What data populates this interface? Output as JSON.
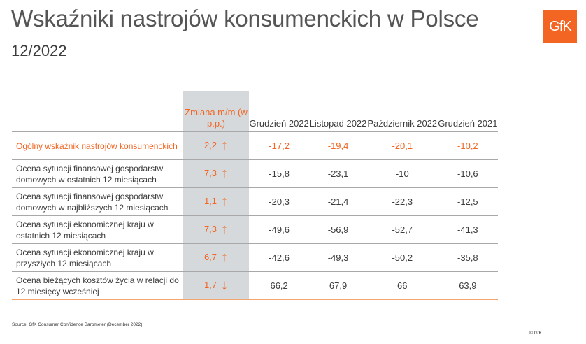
{
  "header": {
    "title": "Wskaźniki nastrojów konsumenckich w Polsce",
    "subtitle": "12/2022",
    "logo": "GfK"
  },
  "table": {
    "columns": [
      "Zmiana m/m (w p.p.)",
      "Grudzień 2022",
      "Listopad 2022",
      "Październik 2022",
      "Grudzień 2021"
    ],
    "rows": [
      {
        "label": "Ogólny wskaźnik nastrojów konsumenckich",
        "change": "2,2",
        "dir": "↑",
        "values": [
          "-17,2",
          "-19,4",
          "-20,1",
          "-10,2"
        ]
      },
      {
        "label": "Ocena sytuacji finansowej gospodarstw domowych w ostatnich 12 miesiącach",
        "change": "7,3",
        "dir": "↑",
        "values": [
          "-15,8",
          "-23,1",
          "-10",
          "-10,6"
        ]
      },
      {
        "label": "Ocena sytuacji finansowej gospodarstw domowych w najbliższych 12 miesiącach",
        "change": "1,1",
        "dir": "↑",
        "values": [
          "-20,3",
          "-21,4",
          "-22,3",
          "-12,5"
        ]
      },
      {
        "label": "Ocena sytuacji ekonomicznej kraju w ostatnich 12 miesiącach",
        "change": "7,3",
        "dir": "↑",
        "values": [
          "-49,6",
          "-56,9",
          "-52,7",
          "-41,3"
        ]
      },
      {
        "label": "Ocena sytuacji ekonomicznej kraju w przyszłych 12 miesiącach",
        "change": "6,7",
        "dir": "↑",
        "values": [
          "-42,6",
          "-49,3",
          "-50,2",
          "-35,8"
        ]
      },
      {
        "label": "Ocena bieżących kosztów życia w relacji do 12 miesięcy wcześniej",
        "change": "1,7",
        "dir": "↓",
        "values": [
          "66,2",
          "67,9",
          "66",
          "63,9"
        ]
      }
    ]
  },
  "footer": {
    "source": "Source: GfK Consumer Confidence Barometer (December 2022)",
    "copyright": "© GfK"
  },
  "colors": {
    "accent": "#f26522",
    "highlight_column": "#d6d9db"
  }
}
